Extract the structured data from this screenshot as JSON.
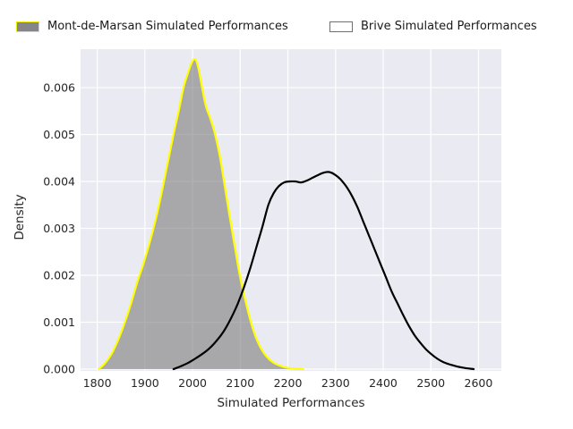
{
  "legend": {
    "items": [
      {
        "label": "Mont-de-Marsan Simulated Performances",
        "fill": "#85858a",
        "edge": "#f2f200"
      },
      {
        "label": "Brive Simulated Performances",
        "fill": "#ffffff",
        "edge": "#6f6f6f"
      }
    ]
  },
  "axes": {
    "xlabel": "Simulated Performances",
    "ylabel": "Density",
    "x_ticks": [
      "1800",
      "1900",
      "2000",
      "2100",
      "2200",
      "2300",
      "2400",
      "2500",
      "2600"
    ],
    "y_ticks": [
      "0.000",
      "0.001",
      "0.002",
      "0.003",
      "0.004",
      "0.005",
      "0.006"
    ],
    "xlim": [
      1765,
      2648
    ],
    "ylim": [
      0,
      0.00682
    ],
    "background": "#eaeaf2",
    "grid_color": "#ffffff",
    "tick_color": "#262626"
  },
  "chart_data": {
    "type": "area",
    "title": "",
    "xlabel": "Simulated Performances",
    "ylabel": "Density",
    "legend_position": "top",
    "grid": true,
    "series": [
      {
        "name": "Mont-de-Marsan Simulated Performances",
        "line_color": "#ffff00",
        "fill_color": "#808080",
        "fill_opacity": 0.62,
        "points": [
          [
            1803,
            0
          ],
          [
            1812,
            8e-05
          ],
          [
            1822,
            0.0002
          ],
          [
            1833,
            0.00038
          ],
          [
            1845,
            0.00065
          ],
          [
            1858,
            0.001
          ],
          [
            1871,
            0.0014
          ],
          [
            1884,
            0.00185
          ],
          [
            1897,
            0.00225
          ],
          [
            1910,
            0.0027
          ],
          [
            1923,
            0.0032
          ],
          [
            1936,
            0.0038
          ],
          [
            1948,
            0.0044
          ],
          [
            1960,
            0.005
          ],
          [
            1971,
            0.0055
          ],
          [
            1981,
            0.006
          ],
          [
            1990,
            0.0063
          ],
          [
            1999,
            0.00655
          ],
          [
            2006,
            0.0066
          ],
          [
            2013,
            0.00638
          ],
          [
            2020,
            0.006
          ],
          [
            2028,
            0.0056
          ],
          [
            2037,
            0.00535
          ],
          [
            2046,
            0.00505
          ],
          [
            2056,
            0.0046
          ],
          [
            2066,
            0.004
          ],
          [
            2077,
            0.0033
          ],
          [
            2088,
            0.00265
          ],
          [
            2099,
            0.002
          ],
          [
            2110,
            0.0015
          ],
          [
            2121,
            0.00105
          ],
          [
            2132,
            0.0007
          ],
          [
            2143,
            0.00045
          ],
          [
            2155,
            0.00027
          ],
          [
            2168,
            0.00015
          ],
          [
            2182,
            8e-05
          ],
          [
            2198,
            3e-05
          ],
          [
            2215,
            1e-05
          ],
          [
            2232,
            0
          ]
        ]
      },
      {
        "name": "Brive Simulated Performances",
        "line_color": "#000000",
        "fill_color": null,
        "fill_opacity": 0,
        "points": [
          [
            1960,
            0
          ],
          [
            1975,
            6e-05
          ],
          [
            1990,
            0.00013
          ],
          [
            2005,
            0.00022
          ],
          [
            2020,
            0.00032
          ],
          [
            2035,
            0.00044
          ],
          [
            2050,
            0.0006
          ],
          [
            2065,
            0.0008
          ],
          [
            2080,
            0.00107
          ],
          [
            2095,
            0.0014
          ],
          [
            2108,
            0.00175
          ],
          [
            2121,
            0.00215
          ],
          [
            2134,
            0.0026
          ],
          [
            2147,
            0.00305
          ],
          [
            2159,
            0.0035
          ],
          [
            2170,
            0.00375
          ],
          [
            2181,
            0.0039
          ],
          [
            2192,
            0.00398
          ],
          [
            2204,
            0.004
          ],
          [
            2216,
            0.004
          ],
          [
            2228,
            0.00398
          ],
          [
            2240,
            0.00402
          ],
          [
            2252,
            0.00408
          ],
          [
            2264,
            0.00414
          ],
          [
            2276,
            0.00419
          ],
          [
            2287,
            0.0042
          ],
          [
            2298,
            0.00415
          ],
          [
            2310,
            0.00405
          ],
          [
            2322,
            0.0039
          ],
          [
            2334,
            0.0037
          ],
          [
            2346,
            0.00345
          ],
          [
            2358,
            0.00315
          ],
          [
            2370,
            0.00285
          ],
          [
            2382,
            0.00255
          ],
          [
            2394,
            0.00225
          ],
          [
            2406,
            0.00195
          ],
          [
            2418,
            0.00165
          ],
          [
            2430,
            0.0014
          ],
          [
            2442,
            0.00115
          ],
          [
            2454,
            0.00092
          ],
          [
            2466,
            0.00072
          ],
          [
            2478,
            0.00056
          ],
          [
            2490,
            0.00042
          ],
          [
            2502,
            0.00031
          ],
          [
            2514,
            0.00022
          ],
          [
            2526,
            0.00015
          ],
          [
            2540,
            0.0001
          ],
          [
            2554,
            6e-05
          ],
          [
            2568,
            3e-05
          ],
          [
            2582,
            1e-05
          ],
          [
            2590,
            0
          ]
        ]
      }
    ]
  }
}
